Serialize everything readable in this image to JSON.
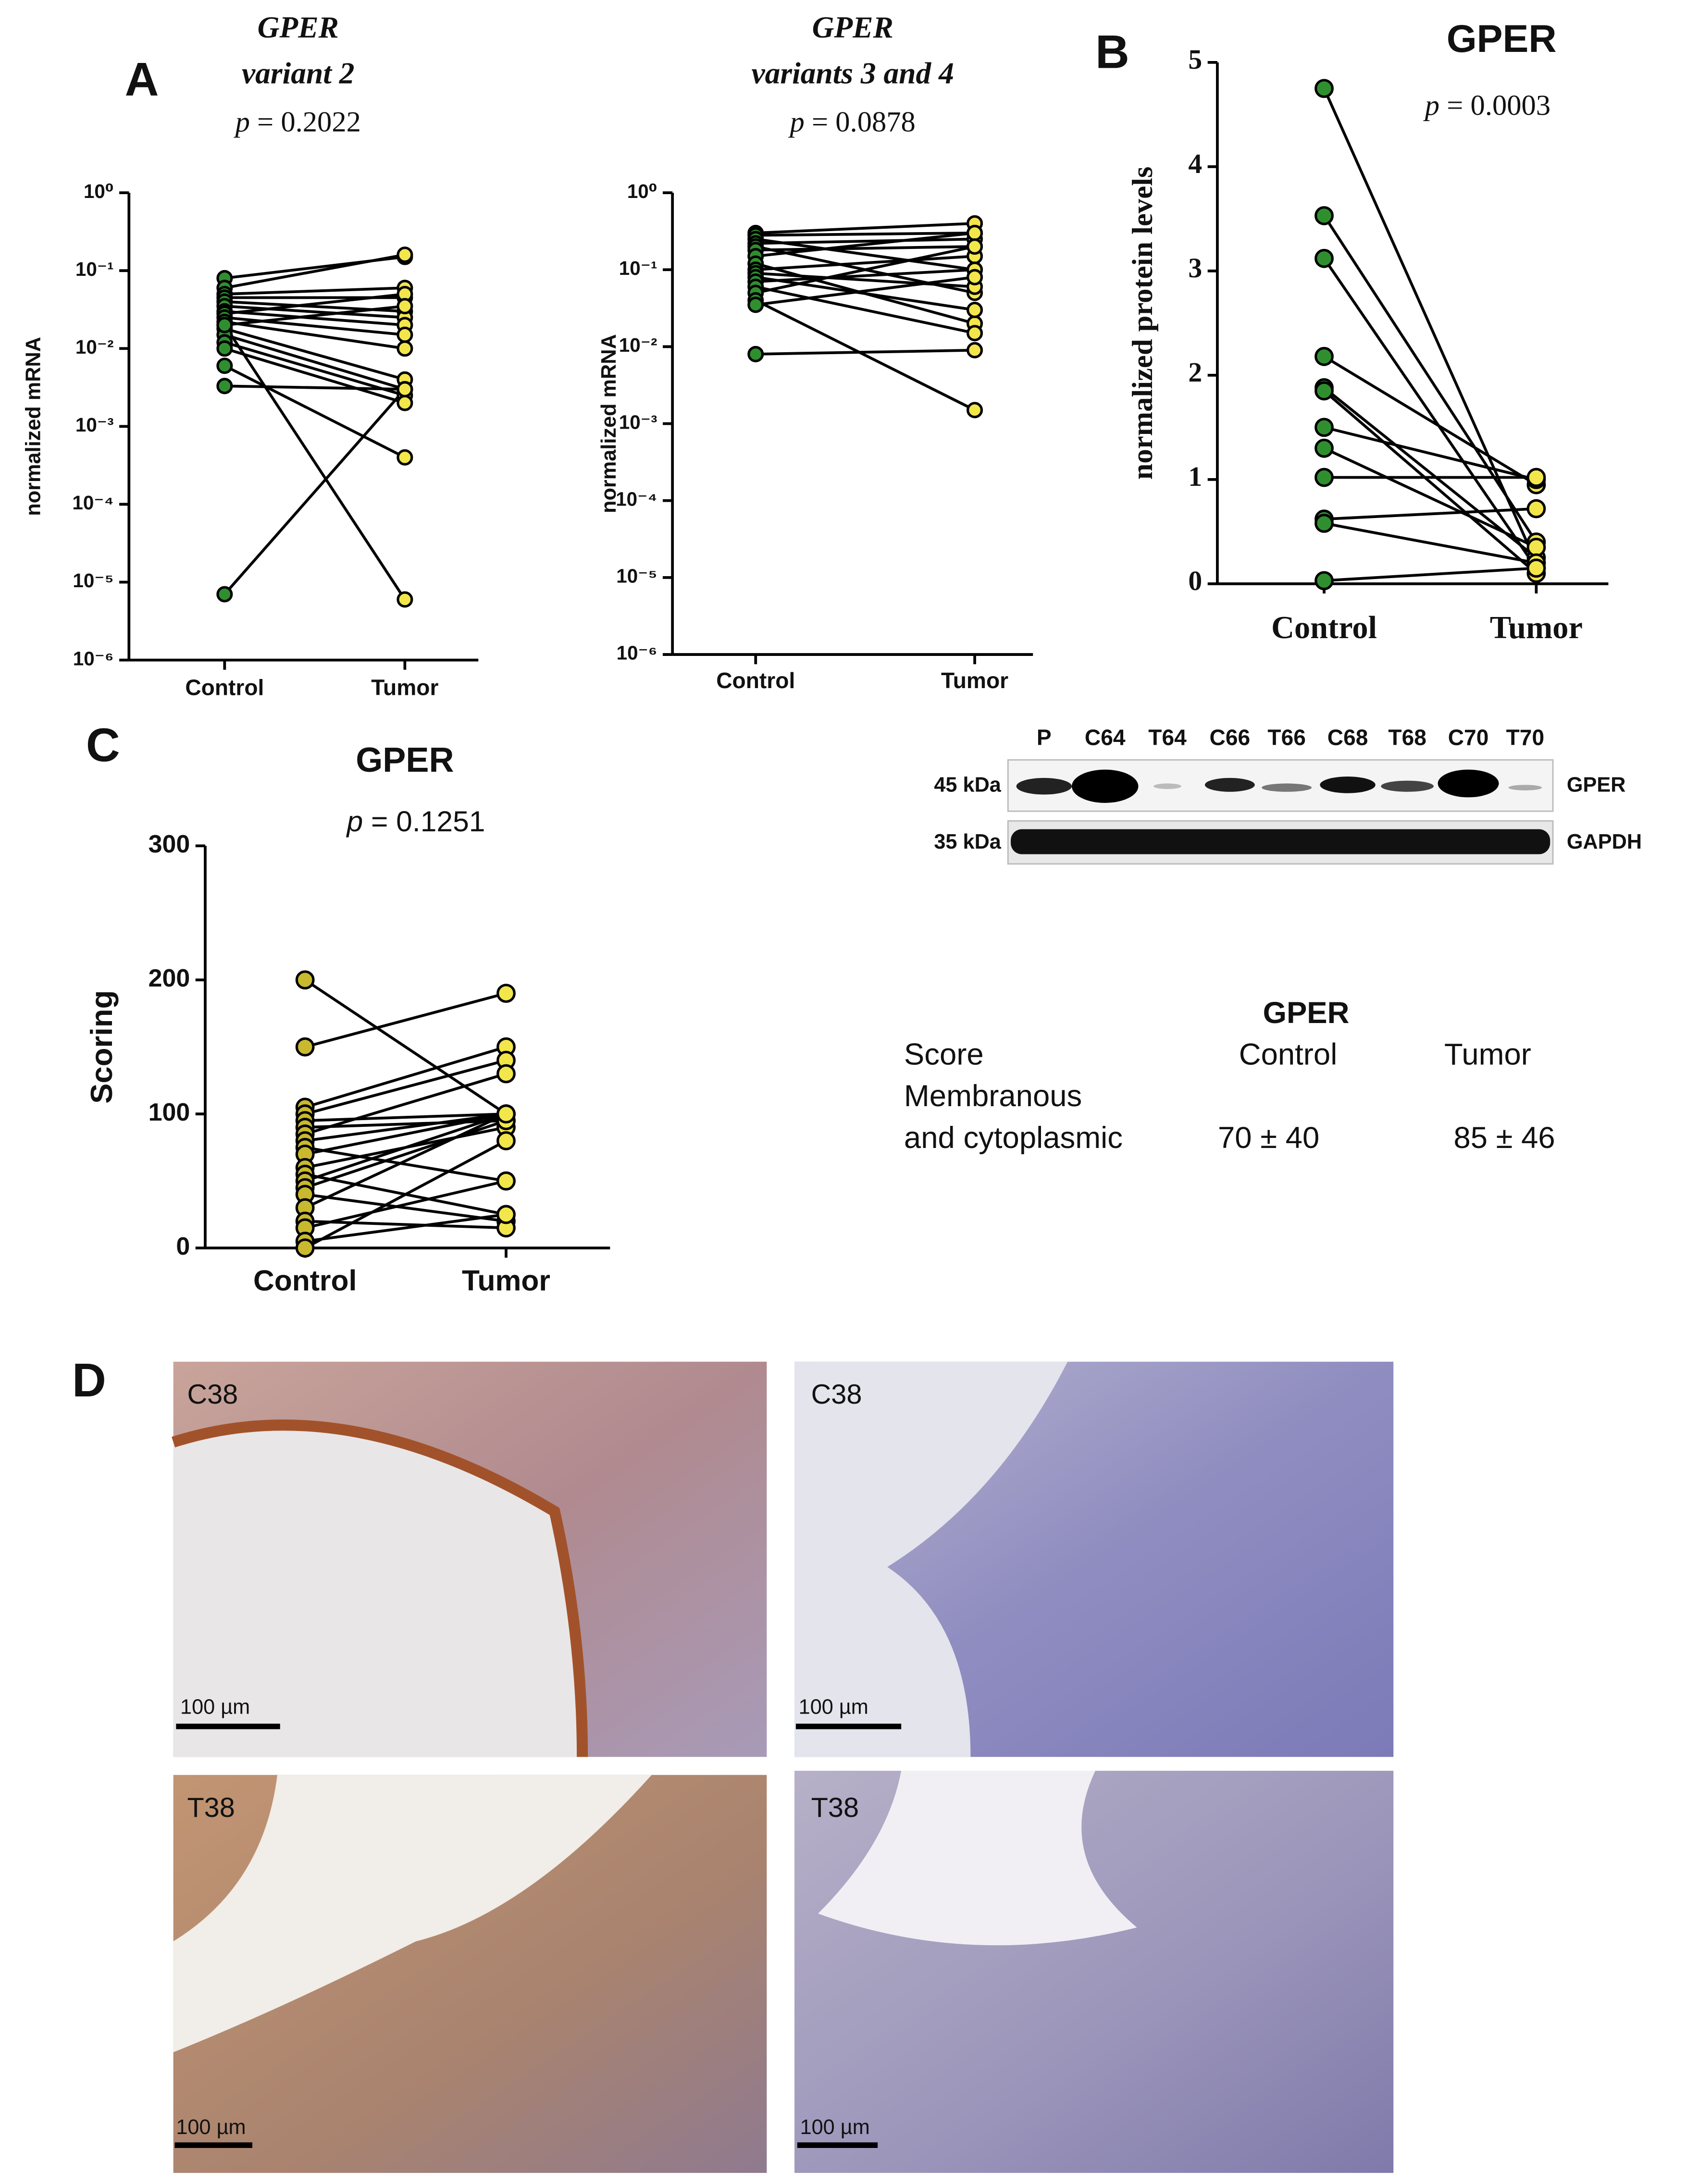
{
  "panels": [
    "A",
    "B",
    "C",
    "D"
  ],
  "chart_data": [
    {
      "type": "paired",
      "title": "GPER",
      "subtitle": "variant 2",
      "p_symbol": "p",
      "p_value": "= 0.2022",
      "y_label": "normalized mRNA",
      "categories": [
        "Control",
        "Tumor"
      ],
      "colors": [
        "#2f8f2f",
        "#f2e64b"
      ],
      "log_scale": true,
      "ylim": [
        1e-06,
        1
      ],
      "yticks": [
        {
          "value": 1,
          "label": "10⁰"
        },
        {
          "value": 0.1,
          "label": "10⁻¹"
        },
        {
          "value": 0.01,
          "label": "10⁻²"
        },
        {
          "value": 0.001,
          "label": "10⁻³"
        },
        {
          "value": 0.0001,
          "label": "10⁻⁴"
        },
        {
          "value": 1e-05,
          "label": "10⁻⁵"
        },
        {
          "value": 1e-06,
          "label": "10⁻⁶"
        }
      ],
      "series": [
        {
          "values": [
            0.08,
            0.15
          ]
        },
        {
          "values": [
            0.06,
            0.16
          ]
        },
        {
          "values": [
            0.05,
            0.06
          ]
        },
        {
          "values": [
            0.045,
            0.045
          ]
        },
        {
          "values": [
            0.04,
            0.03
          ]
        },
        {
          "values": [
            0.035,
            0.025
          ]
        },
        {
          "values": [
            0.03,
            0.02
          ]
        },
        {
          "values": [
            0.028,
            0.05
          ]
        },
        {
          "values": [
            0.025,
            0.015
          ]
        },
        {
          "values": [
            0.022,
            0.01
          ]
        },
        {
          "values": [
            0.02,
            0.035
          ]
        },
        {
          "values": [
            0.018,
            0.004
          ]
        },
        {
          "values": [
            0.015,
            0.003
          ]
        },
        {
          "values": [
            0.012,
            0.0025
          ]
        },
        {
          "values": [
            0.01,
            0.002
          ]
        },
        {
          "values": [
            0.006,
            0.0004
          ]
        },
        {
          "values": [
            0.0033,
            0.003
          ]
        },
        {
          "values": [
            7e-06,
            0.003
          ]
        },
        {
          "values": [
            0.02,
            6e-06
          ]
        }
      ]
    },
    {
      "type": "paired",
      "title": "GPER",
      "subtitle": "variants 3 and 4",
      "p_symbol": "p",
      "p_value": "= 0.0878",
      "y_label": "normalized mRNA",
      "categories": [
        "Control",
        "Tumor"
      ],
      "colors": [
        "#2f8f2f",
        "#f2e64b"
      ],
      "log_scale": true,
      "ylim": [
        1e-06,
        1
      ],
      "yticks": [
        {
          "value": 1,
          "label": "10⁰"
        },
        {
          "value": 0.1,
          "label": "10⁻¹"
        },
        {
          "value": 0.01,
          "label": "10⁻²"
        },
        {
          "value": 0.001,
          "label": "10⁻³"
        },
        {
          "value": 0.0001,
          "label": "10⁻⁴"
        },
        {
          "value": 1e-05,
          "label": "10⁻⁵"
        },
        {
          "value": 1e-06,
          "label": "10⁻⁶"
        }
      ],
      "series": [
        {
          "values": [
            0.3,
            0.4
          ]
        },
        {
          "values": [
            0.28,
            0.3
          ]
        },
        {
          "values": [
            0.25,
            0.1
          ]
        },
        {
          "values": [
            0.22,
            0.25
          ]
        },
        {
          "values": [
            0.2,
            0.05
          ]
        },
        {
          "values": [
            0.18,
            0.2
          ]
        },
        {
          "values": [
            0.15,
            0.3
          ]
        },
        {
          "values": [
            0.12,
            0.02
          ]
        },
        {
          "values": [
            0.1,
            0.15
          ]
        },
        {
          "values": [
            0.09,
            0.06
          ]
        },
        {
          "values": [
            0.08,
            0.03
          ]
        },
        {
          "values": [
            0.07,
            0.1
          ]
        },
        {
          "values": [
            0.06,
            0.015
          ]
        },
        {
          "values": [
            0.05,
            0.2
          ]
        },
        {
          "values": [
            0.04,
            0.0015
          ]
        },
        {
          "values": [
            0.035,
            0.08
          ]
        },
        {
          "values": [
            0.008,
            0.009
          ]
        }
      ]
    },
    {
      "type": "paired",
      "title": "GPER",
      "p_symbol": "p",
      "p_value": "= 0.0003",
      "y_label": "normalized protein levels",
      "categories": [
        "Control",
        "Tumor"
      ],
      "colors": [
        "#2f8f2f",
        "#f2e64b"
      ],
      "ylim": [
        0,
        5
      ],
      "yticks": [
        0,
        1,
        2,
        3,
        4,
        5
      ],
      "series": [
        {
          "values": [
            4.75,
            0.2
          ]
        },
        {
          "values": [
            3.53,
            0.4
          ]
        },
        {
          "values": [
            3.12,
            0.15
          ]
        },
        {
          "values": [
            2.18,
            0.95
          ]
        },
        {
          "values": [
            1.88,
            0.25
          ]
        },
        {
          "values": [
            1.85,
            0.1
          ]
        },
        {
          "values": [
            1.5,
            1.0
          ]
        },
        {
          "values": [
            1.3,
            0.35
          ]
        },
        {
          "values": [
            1.02,
            1.02
          ]
        },
        {
          "values": [
            0.62,
            0.72
          ]
        },
        {
          "values": [
            0.58,
            0.2
          ]
        },
        {
          "values": [
            0.03,
            0.15
          ]
        }
      ]
    },
    {
      "type": "paired",
      "title": "GPER",
      "p_symbol": "p",
      "p_value": "= 0.1251",
      "y_label": "Scoring",
      "categories": [
        "Control",
        "Tumor"
      ],
      "colors": [
        "#c9b92e",
        "#f2e64b"
      ],
      "ylim": [
        0,
        300
      ],
      "yticks": [
        0,
        100,
        200,
        300
      ],
      "series": [
        {
          "values": [
            200,
            100
          ]
        },
        {
          "values": [
            150,
            190
          ]
        },
        {
          "values": [
            105,
            150
          ]
        },
        {
          "values": [
            100,
            140
          ]
        },
        {
          "values": [
            95,
            100
          ]
        },
        {
          "values": [
            90,
            95
          ]
        },
        {
          "values": [
            85,
            130
          ]
        },
        {
          "values": [
            80,
            100
          ]
        },
        {
          "values": [
            75,
            50
          ]
        },
        {
          "values": [
            70,
            100
          ]
        },
        {
          "values": [
            60,
            90
          ]
        },
        {
          "values": [
            55,
            25
          ]
        },
        {
          "values": [
            50,
            100
          ]
        },
        {
          "values": [
            45,
            95
          ]
        },
        {
          "values": [
            40,
            20
          ]
        },
        {
          "values": [
            30,
            100
          ]
        },
        {
          "values": [
            20,
            15
          ]
        },
        {
          "values": [
            15,
            50
          ]
        },
        {
          "values": [
            5,
            25
          ]
        },
        {
          "values": [
            0,
            80
          ]
        }
      ]
    }
  ],
  "blot": {
    "lanes": [
      "P",
      "C64",
      "T64",
      "C66",
      "T66",
      "C68",
      "T68",
      "C70",
      "T70"
    ],
    "rows": [
      {
        "size": "45 kDa",
        "protein": "GPER"
      },
      {
        "size": "35 kDa",
        "protein": "GAPDH"
      }
    ]
  },
  "score_table": {
    "title": "GPER",
    "header": [
      "Score",
      "Control",
      "Tumor"
    ],
    "row_label": [
      "Membranous",
      "and cytoplasmic"
    ],
    "values": [
      "70 ± 40",
      "85 ± 46"
    ]
  },
  "micrographs": [
    {
      "label": "C38",
      "scale_bar": "100 µm"
    },
    {
      "label": "C38",
      "scale_bar": "100 µm"
    },
    {
      "label": "T38",
      "scale_bar": "100 µm"
    },
    {
      "label": "T38",
      "scale_bar": "100 µm"
    }
  ]
}
